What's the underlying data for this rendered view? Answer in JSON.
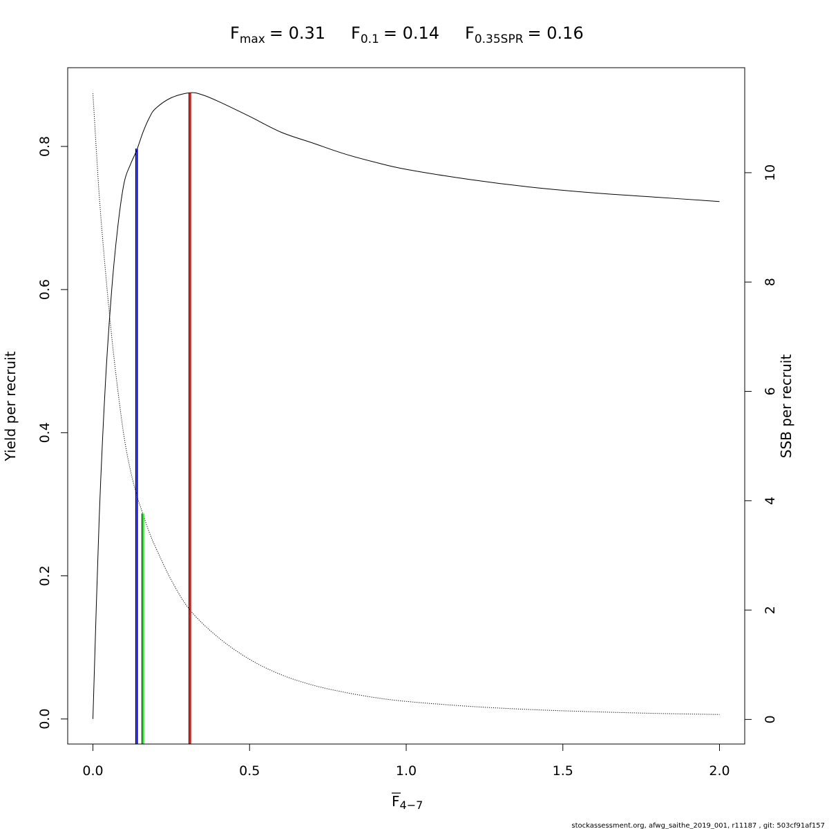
{
  "chart_data": {
    "type": "line",
    "title": {
      "fmax": {
        "base": "F",
        "sub": "max",
        "value": "= 0.31"
      },
      "f01": {
        "base": "F",
        "sub": "0.1",
        "value": "= 0.14"
      },
      "f35": {
        "base": "F",
        "sub": "0.35SPR",
        "value": "= 0.16"
      }
    },
    "xlabel": {
      "base": "F",
      "sub": "4−7"
    },
    "ylabel_left": "Yield per recruit",
    "ylabel_right": "SSB per recruit",
    "xlim": [
      0,
      2.0
    ],
    "ylim_left": [
      -0.035,
      0.91
    ],
    "ylim_right": [
      -0.45,
      11.92
    ],
    "x_ticks": [
      "0.0",
      "0.5",
      "1.0",
      "1.5",
      "2.0"
    ],
    "y_left_ticks": [
      "0.0",
      "0.2",
      "0.4",
      "0.6",
      "0.8"
    ],
    "y_right_ticks": [
      "0",
      "2",
      "4",
      "6",
      "8",
      "10"
    ],
    "grid": false,
    "series": [
      {
        "axis": "left",
        "style": "solid",
        "color": "#000000",
        "x": [
          0,
          0.02,
          0.04,
          0.06,
          0.08,
          0.1,
          0.12,
          0.14,
          0.16,
          0.18,
          0.2,
          0.25,
          0.31,
          0.35,
          0.4,
          0.5,
          0.6,
          0.7,
          0.8,
          0.9,
          1.0,
          1.2,
          1.4,
          1.6,
          1.8,
          2.0
        ],
        "y": [
          0.0,
          0.28,
          0.47,
          0.6,
          0.69,
          0.75,
          0.775,
          0.795,
          0.82,
          0.84,
          0.853,
          0.868,
          0.875,
          0.872,
          0.863,
          0.842,
          0.82,
          0.805,
          0.79,
          0.778,
          0.768,
          0.754,
          0.743,
          0.735,
          0.729,
          0.723
        ]
      },
      {
        "axis": "right",
        "style": "dotted",
        "color": "#000000",
        "x": [
          0,
          0.02,
          0.04,
          0.06,
          0.08,
          0.1,
          0.12,
          0.14,
          0.16,
          0.18,
          0.2,
          0.25,
          0.31,
          0.4,
          0.5,
          0.6,
          0.7,
          0.8,
          0.9,
          1.0,
          1.2,
          1.4,
          1.6,
          1.8,
          2.0
        ],
        "y": [
          11.45,
          9.6,
          8.2,
          7.0,
          6.0,
          5.15,
          4.55,
          4.1,
          3.75,
          3.42,
          3.15,
          2.55,
          2.0,
          1.5,
          1.1,
          0.82,
          0.63,
          0.5,
          0.4,
          0.33,
          0.24,
          0.18,
          0.14,
          0.11,
          0.09
        ]
      }
    ],
    "reference_lines": [
      {
        "name": "F0.1",
        "x": 0.14,
        "y_top": 0.797,
        "color": "#0000ff",
        "edge_color": "#000000"
      },
      {
        "name": "F0.35SPR",
        "x": 0.16,
        "y_top": 0.287,
        "color": "#00ff00",
        "edge_color": "#000000"
      },
      {
        "name": "Fmax",
        "x": 0.31,
        "y_top": 0.875,
        "color": "#ff0000",
        "edge_color": "#000000"
      }
    ]
  },
  "footer": "stockassessment.org, afwg_saithe_2019_001, r11187 , git: 503cf91af157"
}
